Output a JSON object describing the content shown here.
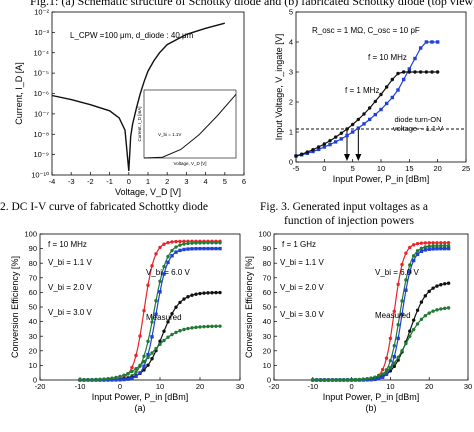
{
  "header_text": "Fig.1: (a) Schematic structure of Schottky diode and (b) fabricated Schottky diode (top view)",
  "captions": {
    "fig2": "2. DC I-V curve of fabricated Schottky diode",
    "fig3_line1": "Fig. 3. Generated input voltages as a",
    "fig3_line2": "function of injection powers"
  },
  "colors": {
    "black": "#111111",
    "blue": "#1f3fd8",
    "red": "#e8242a",
    "green": "#1f7a32",
    "dashed": "#111111"
  },
  "chart_data": [
    {
      "id": "iv",
      "type": "line",
      "annotation_main": "L_CPW =100 μm, d_diode : 40 μm",
      "xlabel": "Voltage, V_D [V]",
      "ylabel": "Current, I_D [A]",
      "xlim": [
        -4,
        6
      ],
      "ylim_log10": [
        -10,
        -2
      ],
      "x_ticks": [
        "-4",
        "-3",
        "-2",
        "-1",
        "0",
        "1",
        "2",
        "3",
        "4",
        "5",
        "6"
      ],
      "y_ticks": [
        "10⁻²",
        "10⁻³",
        "10⁻⁴",
        "10⁻⁵",
        "10⁻⁶",
        "10⁻⁷",
        "10⁻⁸",
        "10⁻⁹",
        "10⁻¹⁰"
      ],
      "series": [
        {
          "x": [
            -4,
            -3,
            -2,
            -1,
            -0.5,
            -0.2,
            0.0,
            0.1,
            0.2,
            0.4,
            0.6,
            0.8,
            1.0,
            1.3,
            1.6,
            2.0,
            3.0,
            4.0,
            5.0
          ],
          "log10_y": [
            -6.1,
            -6.3,
            -6.55,
            -6.85,
            -7.2,
            -7.8,
            -9.8,
            -8.1,
            -7.5,
            -6.7,
            -6.0,
            -5.4,
            -4.9,
            -4.4,
            -4.0,
            -3.6,
            -3.1,
            -2.8,
            -2.55
          ]
        }
      ],
      "inset": {
        "xlabel": "Voltage, V_D [V]",
        "ylabel": "Current, I_D [mA]",
        "annotation": "V_bi = 1.1V",
        "curve_x": [
          0,
          1,
          2,
          3,
          4,
          5
        ],
        "curve_y": [
          0,
          0.02,
          0.2,
          0.55,
          1.0,
          1.5
        ]
      }
    },
    {
      "id": "vin",
      "type": "line",
      "annotation_main": "R_osc = 1 MΩ, C_osc = 10 pF",
      "xlabel": "Input Power, P_in [dBm]",
      "ylabel": "Input Voltage, V_ingate [V]",
      "xlim": [
        -5,
        25
      ],
      "ylim": [
        0,
        5
      ],
      "x_ticks": [
        "-5",
        "0",
        "5",
        "10",
        "15",
        "20",
        "25"
      ],
      "y_ticks": [
        "0",
        "1",
        "2",
        "3",
        "4",
        "5"
      ],
      "threshold_label_1": "diode turn-ON",
      "threshold_label_2": "voltage ~ 1.1 V",
      "threshold": 1.1,
      "arrow_x": [
        4,
        6
      ],
      "series": [
        {
          "name": "f = 10 MHz",
          "x": [
            -5,
            -4,
            -3,
            -2,
            -1,
            0,
            1,
            2,
            3,
            4,
            5,
            6,
            7,
            8,
            9,
            10,
            11,
            12,
            13,
            14,
            15,
            16,
            17,
            18,
            19,
            20
          ],
          "y": [
            0.2,
            0.24,
            0.29,
            0.35,
            0.42,
            0.5,
            0.58,
            0.67,
            0.77,
            0.88,
            1.0,
            1.13,
            1.27,
            1.42,
            1.58,
            1.75,
            1.95,
            2.15,
            2.4,
            2.75,
            3.1,
            3.45,
            3.8,
            4.0,
            4.0,
            4.0
          ]
        },
        {
          "name": "f = 1 MHz",
          "x": [
            -5,
            -4,
            -3,
            -2,
            -1,
            0,
            1,
            2,
            3,
            4,
            5,
            6,
            7,
            8,
            9,
            10,
            11,
            12,
            13,
            14,
            15,
            16,
            17,
            18,
            19,
            20
          ],
          "y": [
            0.2,
            0.26,
            0.33,
            0.41,
            0.5,
            0.6,
            0.71,
            0.83,
            0.96,
            1.1,
            1.25,
            1.42,
            1.6,
            1.8,
            2.02,
            2.25,
            2.5,
            2.75,
            2.95,
            3.0,
            3.0,
            3.0,
            3.0,
            3.0,
            3.0,
            3.0
          ]
        }
      ]
    },
    {
      "id": "eff_a",
      "type": "line",
      "freq_label": "f = 10 MHz",
      "xlabel": "Input Power, P_in [dBm]",
      "ylabel": "Conversion Efficiency [%]",
      "panel_label": "(a)",
      "xlim": [
        -20,
        30
      ],
      "ylim": [
        0,
        100
      ],
      "x_ticks": [
        "-20",
        "-10",
        "0",
        "10",
        "20",
        "30"
      ],
      "y_ticks": [
        "0",
        "10",
        "20",
        "30",
        "40",
        "50",
        "60",
        "70",
        "80",
        "90",
        "100"
      ],
      "series": [
        {
          "name": "V_bi = 1.1 V",
          "center": 6,
          "width": 1.3,
          "max": 95
        },
        {
          "name": "V_bi = 2.0 V",
          "center": 8.5,
          "width": 1.6,
          "max": 94
        },
        {
          "name": "V_bi = 3.0 V",
          "center": 10.5,
          "width": 2.2,
          "max": 60
        },
        {
          "name": "V_bi = 6.0 V",
          "center": 9,
          "width": 1.4,
          "max": 90
        },
        {
          "name": "Measured",
          "center": 8,
          "width": 3.0,
          "max": 37
        }
      ],
      "labels": [
        "V_bi = 1.1 V",
        "V_bi = 2.0 V",
        "V_bi = 3.0 V",
        "V_bi = 6.0 V",
        "Measured"
      ]
    },
    {
      "id": "eff_b",
      "type": "line",
      "freq_label": "f = 1 GHz",
      "xlabel": "Input Power, P_in [dBm]",
      "ylabel": "Conversion Efficiency [%]",
      "panel_label": "(b)",
      "xlim": [
        -20,
        30
      ],
      "ylim": [
        0,
        100
      ],
      "x_ticks": [
        "-20",
        "-10",
        "0",
        "10",
        "20",
        "30"
      ],
      "y_ticks": [
        "0",
        "10",
        "20",
        "30",
        "40",
        "50",
        "60",
        "70",
        "80",
        "90",
        "100"
      ],
      "series": [
        {
          "name": "V_bi = 1.1 V",
          "center": 11,
          "width": 1.2,
          "max": 94
        },
        {
          "name": "V_bi = 2.0 V",
          "center": 12.5,
          "width": 1.4,
          "max": 92
        },
        {
          "name": "V_bi = 3.0 V",
          "center": 15,
          "width": 2.2,
          "max": 67
        },
        {
          "name": "V_bi = 6.0 V",
          "center": 13,
          "width": 1.3,
          "max": 90
        },
        {
          "name": "Measured",
          "center": 14,
          "width": 2.5,
          "max": 50
        }
      ],
      "labels": [
        "V_bi = 1.1 V",
        "V_bi = 2.0 V",
        "V_bi = 3.0 V",
        "V_bi = 6.0 V",
        "Measured"
      ]
    }
  ]
}
